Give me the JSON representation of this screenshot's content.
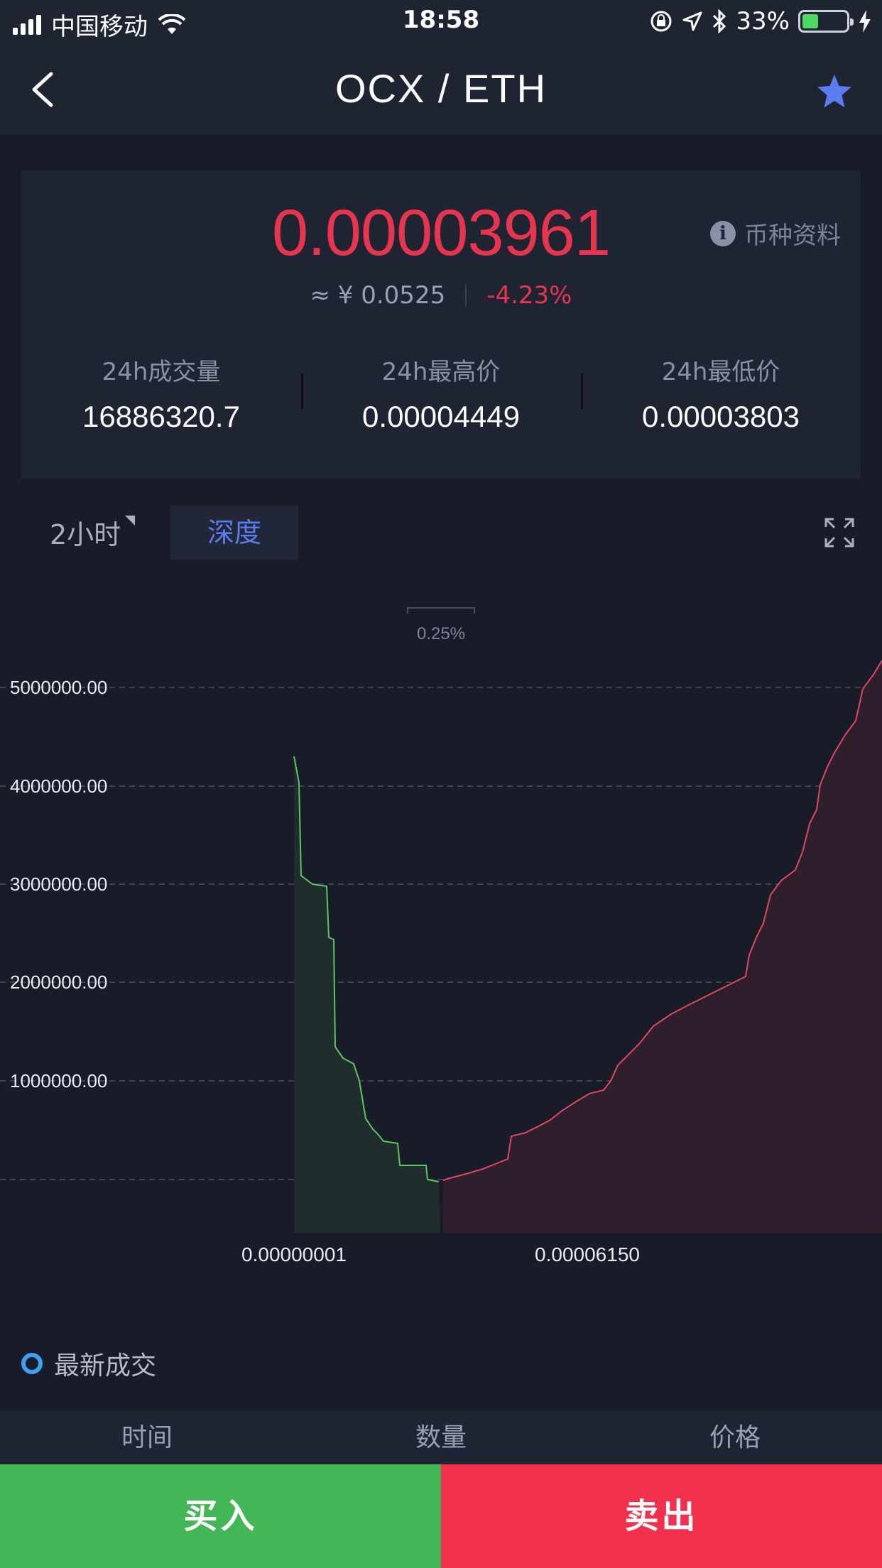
{
  "status_bar": {
    "carrier": "中国移动",
    "time": "18:58",
    "battery": "33%"
  },
  "nav": {
    "title": "OCX / ETH"
  },
  "ticker": {
    "price": "0.00003961",
    "coin_info": "币种资料",
    "cny_price": "≈ ¥ 0.0525",
    "change": "-4.23%",
    "stats": [
      {
        "label": "24h成交量",
        "value": "16886320.7"
      },
      {
        "label": "24h最高价",
        "value": "0.00004449"
      },
      {
        "label": "24h最低价",
        "value": "0.00003803"
      }
    ]
  },
  "chart_tabs": {
    "period": "2小时",
    "depth": "深度"
  },
  "depth_chart": {
    "spread_label": "0.25%",
    "y_ticks": [
      "5000000.00",
      "4000000.00",
      "3000000.00",
      "2000000.00",
      "1000000.00"
    ],
    "x_ticks": [
      "0.00000001",
      "0.00006150"
    ],
    "colors": {
      "bid": "#5ec462",
      "ask": "#e0475e",
      "bid_fill": "#1f2d2c",
      "ask_fill": "#2f1f2d"
    }
  },
  "latest_trades": {
    "title": "最新成交",
    "columns": [
      "时间",
      "数量",
      "价格"
    ]
  },
  "actions": {
    "buy": "买入",
    "sell": "卖出"
  }
}
